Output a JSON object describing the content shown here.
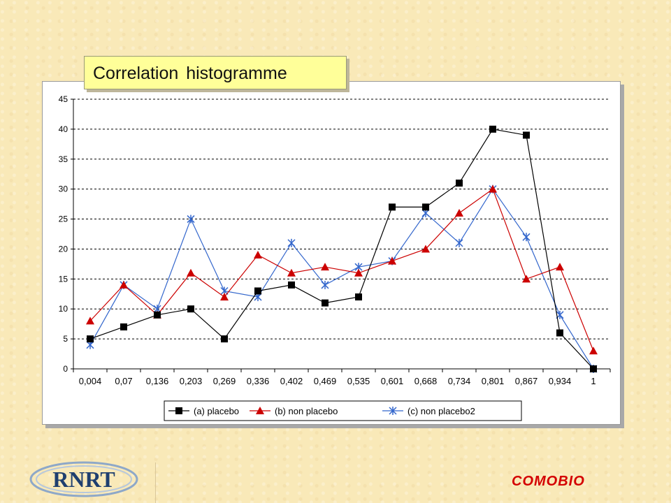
{
  "title": "Correlation histogramme",
  "footer": {
    "logo_text": "RNRT",
    "brand": "COMOBIO"
  },
  "chart_data": {
    "type": "line",
    "categories": [
      "0,004",
      "0,07",
      "0,136",
      "0,203",
      "0,269",
      "0,336",
      "0,402",
      "0,469",
      "0,535",
      "0,601",
      "0,668",
      "0,734",
      "0,801",
      "0,867",
      "0,934",
      "1"
    ],
    "ylim": [
      0,
      45
    ],
    "yticks": [
      0,
      5,
      10,
      15,
      20,
      25,
      30,
      35,
      40,
      45
    ],
    "grid": "horizontal dashed",
    "legend_placement": "bottom",
    "series": [
      {
        "name": "(a) placebo",
        "marker": "square",
        "color": "#000000",
        "values": [
          5,
          7,
          9,
          10,
          5,
          13,
          14,
          11,
          12,
          27,
          27,
          31,
          40,
          39,
          6,
          0
        ]
      },
      {
        "name": "(b) non placebo",
        "marker": "triangle",
        "color": "#cc0000",
        "values": [
          8,
          14,
          9,
          16,
          12,
          19,
          16,
          17,
          16,
          18,
          20,
          26,
          30,
          15,
          17,
          3
        ]
      },
      {
        "name": "(c) non placebo2",
        "marker": "star",
        "color": "#3366cc",
        "values": [
          4,
          14,
          10,
          25,
          13,
          12,
          21,
          14,
          17,
          18,
          26,
          21,
          30,
          22,
          9,
          0
        ]
      }
    ]
  }
}
